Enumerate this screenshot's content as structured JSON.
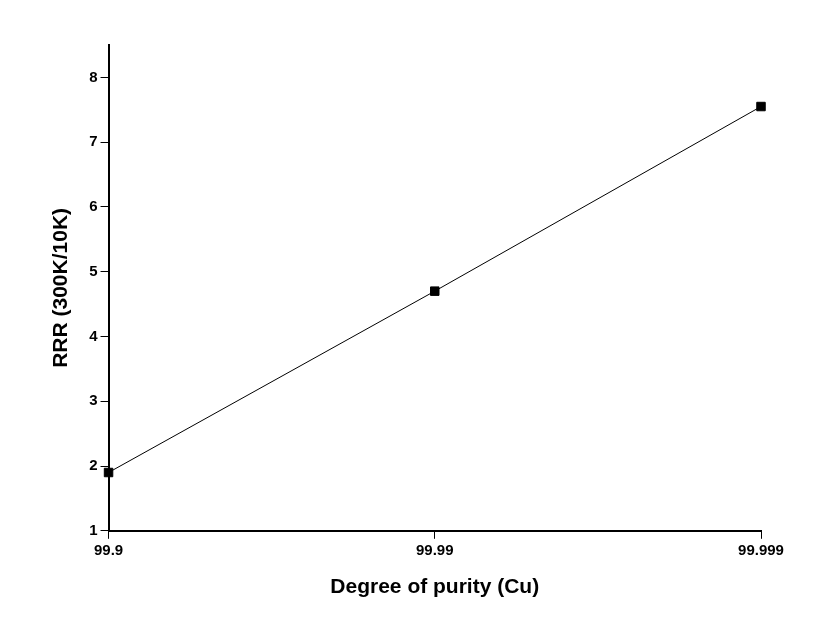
{
  "chart_data": {
    "type": "line",
    "x_label": "Degree of purity (Cu)",
    "y_label": "RRR (300K/10K)",
    "categories": [
      "99.9",
      "99.99",
      "99.999"
    ],
    "values": [
      1.9,
      4.7,
      7.55
    ],
    "color": "#000000",
    "marker": "square",
    "ylim": [
      1,
      8.5
    ],
    "yticks": [
      1,
      2,
      3,
      4,
      5,
      6,
      7,
      8
    ],
    "grid": false
  }
}
